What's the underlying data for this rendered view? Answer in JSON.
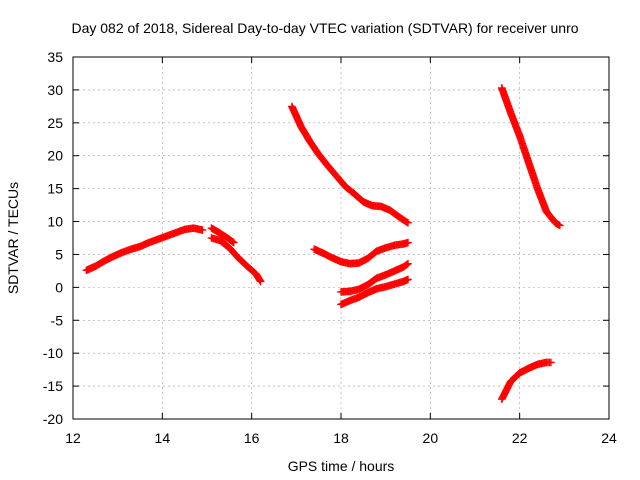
{
  "window": {
    "title": "Day 082 of 2018, Sidereal Day-to-day VTEC variation (SDTVAR) for receiver unro"
  },
  "chart_data": {
    "type": "scatter",
    "title": "Day 082 of 2018, Sidereal Day-to-day VTEC variation (SDTVAR) for receiver unro",
    "xlabel": "GPS time / hours",
    "ylabel": "SDTVAR / TECUs",
    "xlim": [
      12,
      24
    ],
    "ylim": [
      -20,
      35
    ],
    "xticks": [
      "12",
      "14",
      "16",
      "18",
      "20",
      "22",
      "24"
    ],
    "yticks": [
      "-20",
      "-15",
      "-10",
      "-5",
      "0",
      "5",
      "10",
      "15",
      "20",
      "25",
      "30",
      "35"
    ],
    "grid": true,
    "marker": "plus",
    "colors": {
      "series": "#ff0000",
      "frame": "#000000",
      "grid": "#a0a0a0"
    },
    "series": [
      {
        "points": [
          [
            12.3,
            2.6
          ],
          [
            12.5,
            3.2
          ],
          [
            12.7,
            4.0
          ],
          [
            12.9,
            4.7
          ],
          [
            13.1,
            5.3
          ],
          [
            13.3,
            5.8
          ],
          [
            13.5,
            6.2
          ],
          [
            13.7,
            6.8
          ],
          [
            13.9,
            7.3
          ],
          [
            14.1,
            7.8
          ],
          [
            14.3,
            8.3
          ],
          [
            14.5,
            8.8
          ],
          [
            14.7,
            9.0
          ],
          [
            14.9,
            8.7
          ]
        ]
      },
      {
        "points": [
          [
            15.1,
            9.0
          ],
          [
            15.3,
            8.2
          ],
          [
            15.5,
            7.3
          ],
          [
            15.6,
            6.8
          ]
        ]
      },
      {
        "points": [
          [
            15.1,
            7.5
          ],
          [
            15.3,
            7.1
          ],
          [
            15.5,
            6.0
          ],
          [
            15.7,
            4.5
          ],
          [
            15.9,
            3.2
          ],
          [
            16.1,
            2.0
          ],
          [
            16.2,
            0.9
          ]
        ]
      },
      {
        "points": [
          [
            16.9,
            27.5
          ],
          [
            17.1,
            24.5
          ],
          [
            17.3,
            22.2
          ],
          [
            17.5,
            20.2
          ],
          [
            17.7,
            18.5
          ],
          [
            17.9,
            16.9
          ],
          [
            18.1,
            15.3
          ],
          [
            18.3,
            14.2
          ],
          [
            18.5,
            13.0
          ],
          [
            18.7,
            12.4
          ],
          [
            18.9,
            12.3
          ],
          [
            19.1,
            11.7
          ],
          [
            19.3,
            10.7
          ],
          [
            19.5,
            9.8
          ]
        ]
      },
      {
        "points": [
          [
            17.4,
            5.8
          ],
          [
            17.6,
            5.2
          ],
          [
            17.8,
            4.5
          ],
          [
            18.0,
            3.9
          ],
          [
            18.2,
            3.6
          ],
          [
            18.4,
            3.7
          ],
          [
            18.6,
            4.4
          ],
          [
            18.8,
            5.5
          ],
          [
            19.0,
            6.0
          ],
          [
            19.2,
            6.4
          ],
          [
            19.4,
            6.6
          ],
          [
            19.5,
            6.8
          ]
        ]
      },
      {
        "points": [
          [
            18.0,
            -0.7
          ],
          [
            18.2,
            -0.6
          ],
          [
            18.4,
            -0.3
          ],
          [
            18.6,
            0.4
          ],
          [
            18.8,
            1.4
          ],
          [
            19.0,
            1.9
          ],
          [
            19.2,
            2.5
          ],
          [
            19.4,
            3.1
          ],
          [
            19.5,
            3.6
          ]
        ]
      },
      {
        "points": [
          [
            18.0,
            -2.6
          ],
          [
            18.2,
            -2.0
          ],
          [
            18.4,
            -1.5
          ],
          [
            18.6,
            -0.8
          ],
          [
            18.8,
            -0.2
          ],
          [
            19.0,
            0.1
          ],
          [
            19.2,
            0.5
          ],
          [
            19.4,
            0.9
          ],
          [
            19.5,
            1.2
          ]
        ]
      },
      {
        "points": [
          [
            21.6,
            30.3
          ],
          [
            21.8,
            26.5
          ],
          [
            22.0,
            23.0
          ],
          [
            22.2,
            19.0
          ],
          [
            22.4,
            15.0
          ],
          [
            22.6,
            11.5
          ],
          [
            22.8,
            9.8
          ],
          [
            22.9,
            9.4
          ]
        ]
      },
      {
        "points": [
          [
            21.6,
            -17.0
          ],
          [
            21.8,
            -14.3
          ],
          [
            22.0,
            -13.0
          ],
          [
            22.2,
            -12.3
          ],
          [
            22.4,
            -11.7
          ],
          [
            22.6,
            -11.4
          ],
          [
            22.7,
            -11.4
          ]
        ]
      }
    ]
  }
}
